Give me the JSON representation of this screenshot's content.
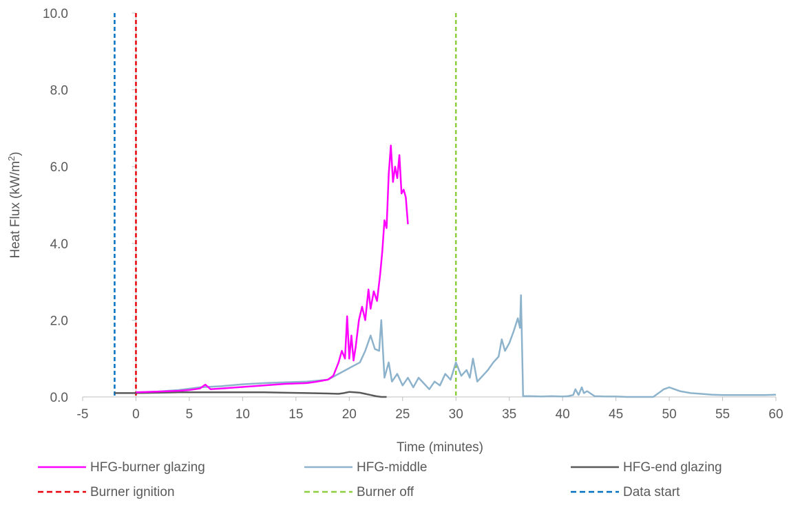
{
  "chart_data": {
    "type": "line",
    "title": "",
    "xlabel": "Time (minutes)",
    "ylabel_main": "Heat Flux (kW/m",
    "ylabel_sup": "2",
    "ylabel_close": ")",
    "xlim": [
      -5,
      60
    ],
    "ylim": [
      0,
      10
    ],
    "x_ticks": [
      -5,
      0,
      5,
      10,
      15,
      20,
      25,
      30,
      35,
      40,
      45,
      50,
      55,
      60
    ],
    "x_tick_labels": [
      "-5",
      "0",
      "5",
      "10",
      "15",
      "20",
      "25",
      "30",
      "35",
      "40",
      "45",
      "50",
      "55",
      "60"
    ],
    "y_ticks": [
      0,
      2,
      4,
      6,
      8,
      10
    ],
    "y_tick_labels": [
      "0.0",
      "2.0",
      "4.0",
      "6.0",
      "8.0",
      "10.0"
    ],
    "grid": false,
    "legend_position": "bottom",
    "series": [
      {
        "name": "HFG-burner glazing",
        "color": "#ff00ff",
        "style": "solid",
        "x": [
          0,
          2,
          4,
          5,
          6,
          6.5,
          7,
          8,
          10,
          12,
          14,
          16,
          17,
          18,
          18.5,
          19,
          19.3,
          19.6,
          19.8,
          20,
          20.2,
          20.4,
          20.6,
          20.9,
          21.2,
          21.5,
          21.8,
          22,
          22.3,
          22.6,
          22.9,
          23.1,
          23.3,
          23.5,
          23.7,
          23.9,
          24.1,
          24.3,
          24.5,
          24.7,
          24.9,
          25.1,
          25.3,
          25.5
        ],
        "y": [
          0.12,
          0.14,
          0.16,
          0.18,
          0.22,
          0.32,
          0.2,
          0.22,
          0.26,
          0.3,
          0.34,
          0.36,
          0.4,
          0.45,
          0.55,
          0.9,
          1.2,
          1.0,
          2.1,
          1.0,
          1.6,
          0.95,
          1.3,
          2.0,
          2.35,
          2.0,
          2.8,
          2.3,
          2.75,
          2.5,
          3.2,
          3.8,
          4.6,
          4.4,
          5.8,
          6.55,
          5.6,
          6.0,
          5.7,
          6.3,
          5.3,
          5.4,
          5.2,
          4.5
        ]
      },
      {
        "name": "HFG-middle",
        "color": "#8db3cc",
        "style": "solid",
        "x": [
          0,
          2,
          4,
          6,
          8,
          10,
          12,
          14,
          16,
          18,
          19,
          20,
          21,
          21.5,
          22,
          22.4,
          22.8,
          23,
          23.3,
          23.7,
          24,
          24.5,
          25,
          25.5,
          26,
          26.5,
          27,
          27.5,
          28,
          28.5,
          29,
          29.5,
          30,
          30.5,
          31,
          31.3,
          31.6,
          32,
          32.5,
          33,
          33.5,
          34,
          34.3,
          34.6,
          35,
          35.4,
          35.8,
          36,
          36.1,
          36.3,
          37,
          38,
          39,
          40,
          40.5,
          41,
          41.2,
          41.5,
          41.8,
          42,
          42.3,
          43,
          44,
          45,
          46,
          47,
          48,
          48.5,
          49,
          49.5,
          50,
          50.5,
          51,
          52,
          53,
          54,
          55,
          56,
          57,
          58,
          59,
          60
        ],
        "y": [
          0.12,
          0.14,
          0.18,
          0.25,
          0.28,
          0.33,
          0.36,
          0.38,
          0.4,
          0.45,
          0.6,
          0.75,
          0.9,
          1.2,
          1.6,
          1.25,
          1.2,
          2.0,
          0.5,
          0.9,
          0.4,
          0.6,
          0.3,
          0.5,
          0.25,
          0.5,
          0.35,
          0.2,
          0.4,
          0.3,
          0.6,
          0.45,
          0.9,
          0.55,
          0.7,
          0.5,
          1.0,
          0.4,
          0.55,
          0.7,
          0.9,
          1.05,
          1.5,
          1.2,
          1.4,
          1.7,
          2.05,
          1.8,
          2.65,
          0.02,
          0.02,
          0.01,
          0.02,
          0.01,
          0.02,
          0.05,
          0.2,
          0.05,
          0.25,
          0.1,
          0.15,
          0.02,
          0.01,
          0.01,
          0.0,
          0.0,
          0.0,
          0.0,
          0.1,
          0.2,
          0.25,
          0.2,
          0.15,
          0.1,
          0.08,
          0.06,
          0.05,
          0.05,
          0.05,
          0.05,
          0.05,
          0.06
        ]
      },
      {
        "name": "HFG-end glazing",
        "color": "#595959",
        "style": "solid",
        "x": [
          -2,
          0,
          2,
          4,
          6,
          8,
          10,
          12,
          14,
          16,
          18,
          19,
          19.5,
          20,
          20.5,
          21,
          21.5,
          22,
          22.5,
          23,
          23.5
        ],
        "y": [
          0.1,
          0.1,
          0.11,
          0.12,
          0.12,
          0.12,
          0.12,
          0.12,
          0.11,
          0.1,
          0.09,
          0.08,
          0.1,
          0.13,
          0.12,
          0.11,
          0.08,
          0.05,
          0.02,
          0.0,
          0.0
        ]
      }
    ],
    "vlines": [
      {
        "name": "Burner ignition",
        "x": 0,
        "color": "#e8000b",
        "style": "dashed"
      },
      {
        "name": "Burner off",
        "x": 30,
        "color": "#8cce3e",
        "style": "dashed"
      },
      {
        "name": "Data start",
        "x": -2,
        "color": "#0070c0",
        "style": "dashed"
      }
    ]
  }
}
